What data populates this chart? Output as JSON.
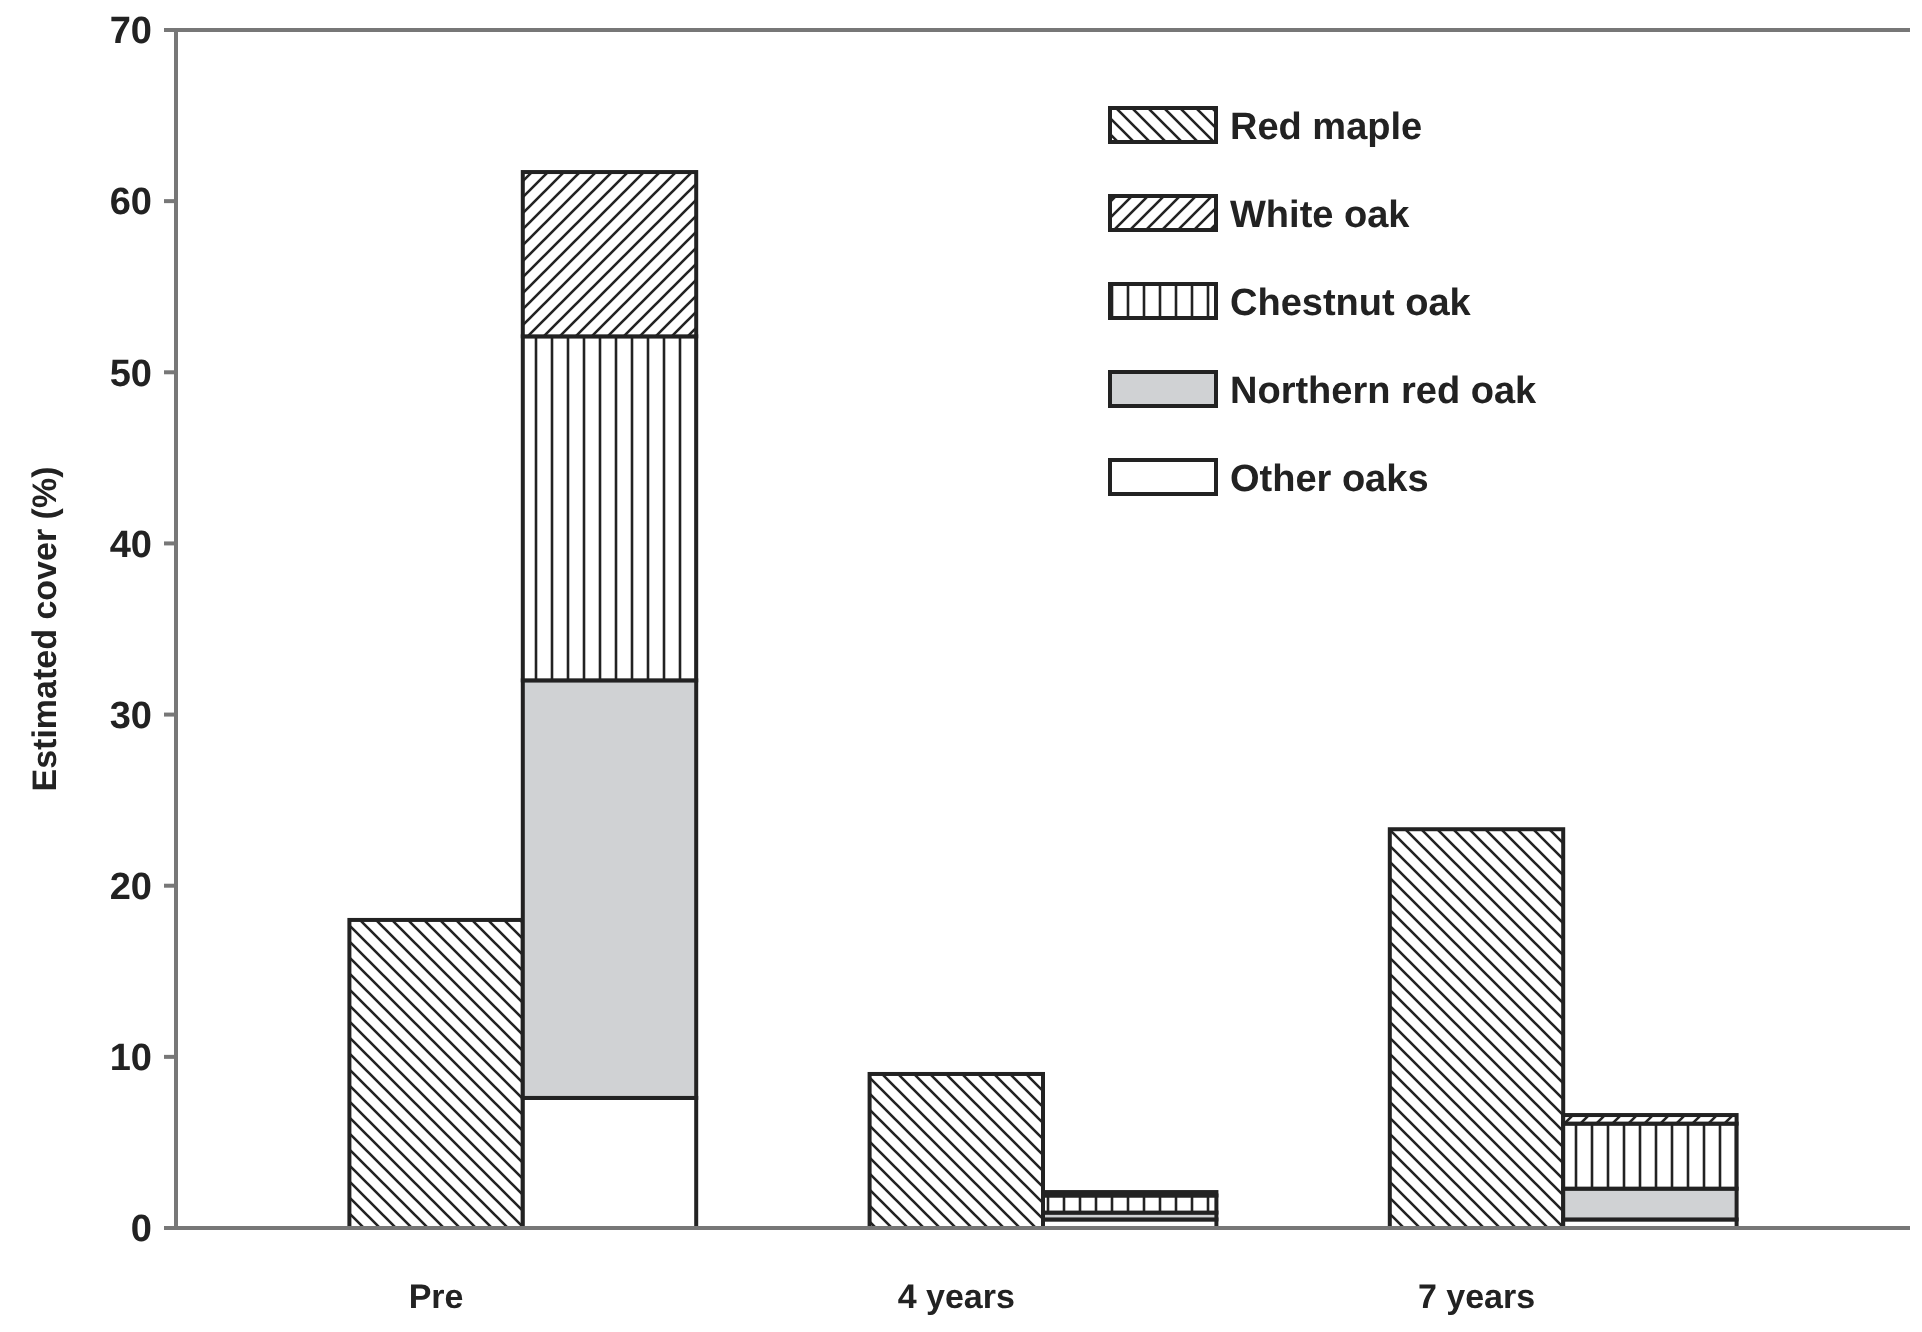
{
  "chart_data": {
    "type": "bar",
    "stacked": true,
    "ylabel": "Estimated cover (%)",
    "categories": [
      "Pre",
      null,
      "4 years",
      null,
      "7 years",
      null
    ],
    "ylim": [
      0,
      70
    ],
    "yticks": [
      0,
      10,
      20,
      30,
      40,
      50,
      60,
      70
    ],
    "legend": "top right",
    "series": [
      {
        "name": "Red maple",
        "color": "#222222",
        "values": [
          18.0,
          null,
          9.0,
          null,
          23.3,
          null
        ]
      },
      {
        "name": "Other oaks",
        "color": "#ffffff",
        "values": [
          null,
          7.6,
          null,
          0.5,
          null,
          0.5
        ]
      },
      {
        "name": "Northern red oak",
        "color": "#d0d2d4",
        "values": [
          null,
          24.4,
          null,
          0.4,
          null,
          1.8
        ]
      },
      {
        "name": "Chestnut oak",
        "color": "#222222",
        "values": [
          null,
          20.1,
          null,
          1.0,
          null,
          3.8
        ]
      },
      {
        "name": "White oak",
        "color": "#222222",
        "values": [
          null,
          9.6,
          null,
          0.2,
          null,
          0.5
        ]
      }
    ]
  }
}
